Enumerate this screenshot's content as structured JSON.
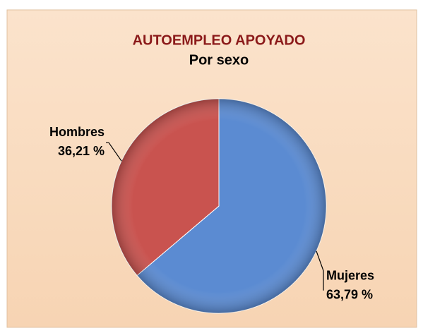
{
  "chart_data": {
    "type": "pie",
    "title": "AUTOEMPLEO APOYADO",
    "subtitle": "Por sexo",
    "categories": [
      "Mujeres",
      "Hombres"
    ],
    "values": [
      63.79,
      36.21
    ],
    "value_labels": [
      "63,79 %",
      "36,21 %"
    ],
    "colors": [
      "#5b8bd2",
      "#c9534f"
    ]
  }
}
